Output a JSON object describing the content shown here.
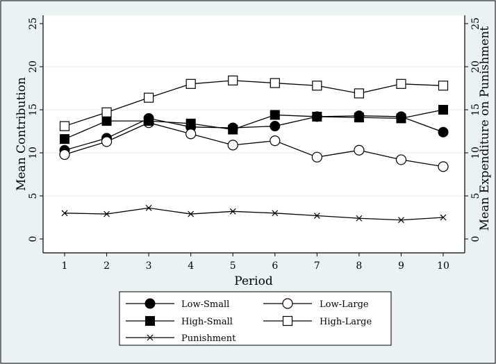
{
  "chart_data": {
    "type": "line",
    "x": [
      1,
      2,
      3,
      4,
      5,
      6,
      7,
      8,
      9,
      10
    ],
    "xlabel": "Period",
    "ylabel": "Mean Contribution",
    "y2label": "Mean Expenditure on Punishment",
    "xlim": [
      1,
      10
    ],
    "ylim": [
      0,
      25
    ],
    "y2lim": [
      0,
      25
    ],
    "yticks": [
      0,
      5,
      10,
      15,
      20,
      25
    ],
    "xticks": [
      1,
      2,
      3,
      4,
      5,
      6,
      7,
      8,
      9,
      10
    ],
    "grid": true,
    "legend_position": "bottom",
    "series": [
      {
        "name": "Low-Small",
        "marker": "filled-circle",
        "values": [
          10.3,
          11.7,
          14.0,
          13.0,
          12.9,
          13.1,
          14.2,
          14.3,
          14.2,
          12.4
        ]
      },
      {
        "name": "Low-Large",
        "marker": "open-circle",
        "values": [
          9.8,
          11.3,
          13.5,
          12.2,
          10.9,
          11.4,
          9.5,
          10.3,
          9.2,
          8.4
        ]
      },
      {
        "name": "High-Small",
        "marker": "filled-square",
        "values": [
          11.6,
          13.7,
          13.7,
          13.4,
          12.7,
          14.4,
          14.2,
          14.1,
          14.0,
          15.0
        ]
      },
      {
        "name": "High-Large",
        "marker": "open-square",
        "values": [
          13.1,
          14.7,
          16.4,
          18.0,
          18.4,
          18.1,
          17.8,
          16.9,
          18.0,
          17.8
        ]
      },
      {
        "name": "Punishment",
        "marker": "x",
        "values": [
          3.0,
          2.9,
          3.6,
          2.9,
          3.2,
          3.0,
          2.7,
          2.4,
          2.2,
          2.5
        ]
      }
    ]
  },
  "colors": {
    "background": "#eaf2f3",
    "plot_background": "#ffffff",
    "ink": "#000000"
  }
}
